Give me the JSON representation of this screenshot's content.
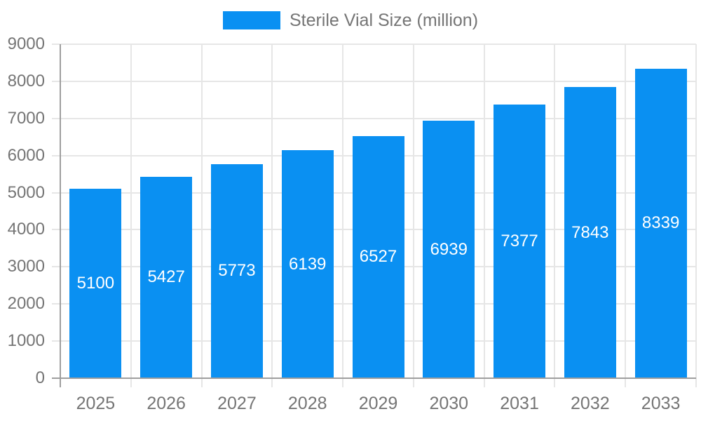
{
  "chart_data": {
    "type": "bar",
    "title": "Sterile Vial Size (million)",
    "categories": [
      "2025",
      "2026",
      "2027",
      "2028",
      "2029",
      "2030",
      "2031",
      "2032",
      "2033"
    ],
    "series": [
      {
        "name": "Sterile Vial Size (million)",
        "values": [
          5100,
          5427,
          5773,
          6139,
          6527,
          6939,
          7377,
          7843,
          8339
        ]
      }
    ],
    "xlabel": "",
    "ylabel": "",
    "ylim": [
      0,
      9000
    ],
    "y_ticks": [
      9000,
      8000,
      7000,
      6000,
      5000,
      4000,
      3000,
      2000,
      1000,
      0
    ],
    "grid": true,
    "legend_position": "top",
    "colors": {
      "bar": "#0a90f2",
      "value_label": "#ffffff",
      "axis_text": "#757575",
      "legend_text": "#757575",
      "gridline": "#e6e6e6",
      "axis_line": "#9e9e9e"
    }
  }
}
